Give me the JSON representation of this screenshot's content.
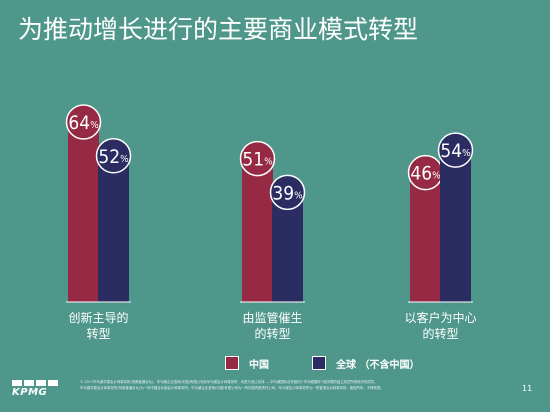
{
  "slide": {
    "title": "为推动增长进行的主要商业模式转型",
    "page_number": "11",
    "logo_text": "KPMG",
    "footer_lines": [
      "© 2017毕马威华振会计师事务所(特殊普通合伙)、毕马威企业咨询(中国)有限公司及毕马威会计师事务所，均是与瑞士实体 — 毕马威国际合作组织(\"毕马威国际\")相关联的独立成员所网络中的成员。",
      "毕马威华振会计师事务所(特殊普通合伙)为一所中国合伙制会计师事务所；毕马威企业咨询(中国)有限公司为一所中国有限责任公司；毕马威会计师事务所为一所香港合伙制事务所。版权所有，不得转载。"
    ]
  },
  "colors": {
    "background": "#4e978a",
    "china": "#962a45",
    "global": "#2b2d62"
  },
  "chart_data": {
    "type": "bar",
    "title": "",
    "categories": [
      [
        "创新主导的",
        "转型"
      ],
      [
        "由监管催生",
        "的转型"
      ],
      [
        "以客户为中心",
        "的转型"
      ]
    ],
    "series": [
      {
        "name": "中国",
        "values": [
          64,
          51,
          46
        ],
        "labels": [
          "64%",
          "51%",
          "46%"
        ]
      },
      {
        "name": "全球 （不含中国）",
        "values": [
          52,
          39,
          54
        ],
        "labels": [
          "52%",
          "39%",
          "54%"
        ]
      }
    ],
    "ylim": [
      0,
      64
    ],
    "legend_position": "bottom-center",
    "grid": false
  }
}
